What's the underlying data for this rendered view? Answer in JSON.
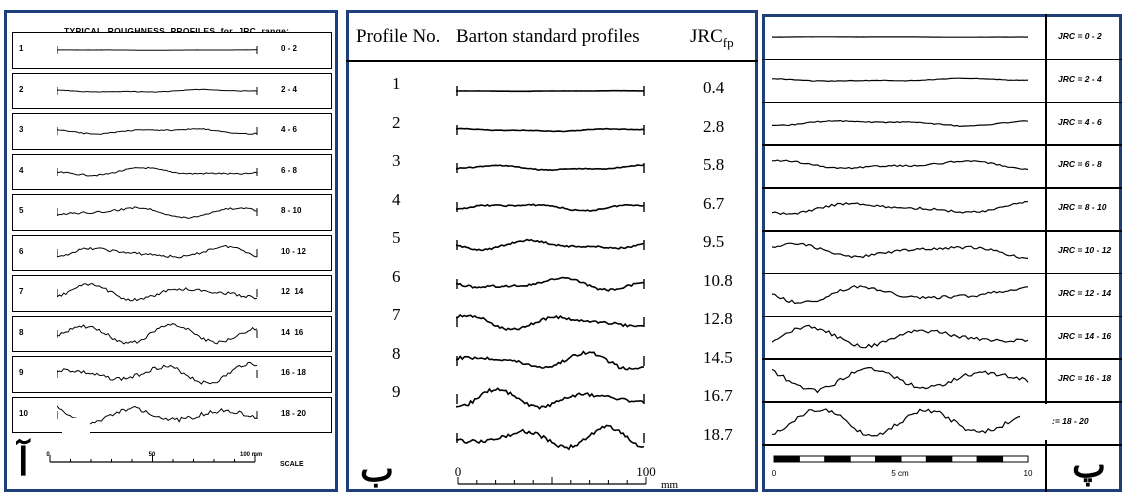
{
  "panel_a": {
    "title": "TYPICAL  ROUGHNESS  PROFILES  for  JRC  range:",
    "rows": [
      {
        "no": "1",
        "range": "0 - 2"
      },
      {
        "no": "2",
        "range": "2 - 4"
      },
      {
        "no": "3",
        "range": "4 - 6"
      },
      {
        "no": "4",
        "range": "6 - 8"
      },
      {
        "no": "5",
        "range": "8 - 10"
      },
      {
        "no": "6",
        "range": "10 - 12"
      },
      {
        "no": "7",
        "range": "12  14"
      },
      {
        "no": "8",
        "range": "14  16"
      },
      {
        "no": "9",
        "range": "16 - 18"
      },
      {
        "no": "10",
        "range": "18 - 20"
      }
    ],
    "scale": {
      "t0": "0",
      "t50": "50",
      "t100": "100 mm",
      "label": "SCALE"
    },
    "panel_letter": "آ"
  },
  "panel_b": {
    "header_profile": "Profile No.",
    "header_title": "Barton standard profiles",
    "header_jrc": "JRC",
    "header_jrc_sub": "fp",
    "rows": [
      {
        "no": "1",
        "jrc": "0.4"
      },
      {
        "no": "2",
        "jrc": "2.8"
      },
      {
        "no": "3",
        "jrc": "5.8"
      },
      {
        "no": "4",
        "jrc": "6.7"
      },
      {
        "no": "5",
        "jrc": "9.5"
      },
      {
        "no": "6",
        "jrc": "10.8"
      },
      {
        "no": "7",
        "jrc": "12.8"
      },
      {
        "no": "8",
        "jrc": "14.5"
      },
      {
        "no": "9",
        "jrc": "16.7"
      },
      {
        "no": "",
        "jrc": "18.7"
      }
    ],
    "scale": {
      "t0": "0",
      "t100": "100",
      "unit": "mm"
    },
    "panel_letter": "ب"
  },
  "panel_c": {
    "rows": [
      {
        "label": "JRC = 0 - 2"
      },
      {
        "label": "JRC = 2 - 4"
      },
      {
        "label": "JRC = 4 - 6"
      },
      {
        "label": "JRC = 6 - 8"
      },
      {
        "label": "JRC = 8 - 10"
      },
      {
        "label": "JRC = 10 - 12"
      },
      {
        "label": "JRC = 12 - 14"
      },
      {
        "label": "JRC = 14 - 16"
      },
      {
        "label": "JRC = 16 - 18"
      },
      {
        "label": ":= 18 - 20"
      }
    ],
    "scale": {
      "t0": "0",
      "tmid": "5 cm",
      "tend": "10"
    },
    "panel_letter": "پ"
  },
  "colors": {
    "frame": "#1f3f7a",
    "ink": "#000000"
  }
}
